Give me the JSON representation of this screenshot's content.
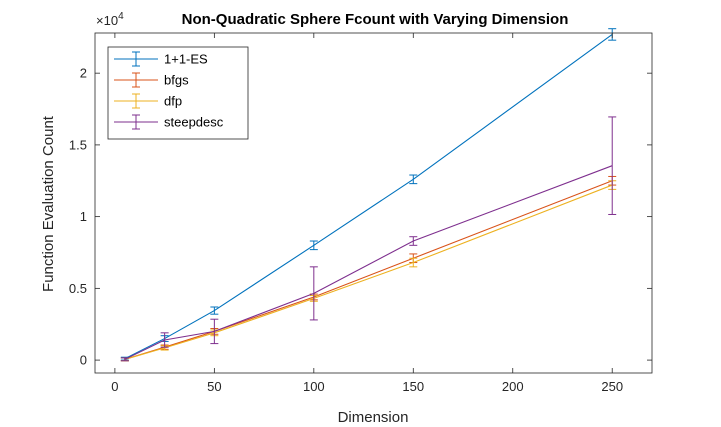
{
  "chart_data": {
    "type": "line",
    "title": "Non-Quadratic Sphere Fcount with Varying Dimension",
    "xlabel": "Dimension",
    "ylabel": "Function Evaluation Count",
    "xlim": [
      -10,
      270
    ],
    "ylim": [
      -0.09,
      2.28
    ],
    "y_exponent_label": "×10",
    "y_exponent_power": "4",
    "x_ticks": [
      0,
      50,
      100,
      150,
      200,
      250
    ],
    "x_tick_labels": [
      "0",
      "50",
      "100",
      "150",
      "200",
      "250"
    ],
    "y_ticks": [
      0,
      0.5,
      1,
      1.5,
      2
    ],
    "y_tick_labels": [
      "0",
      "0.5",
      "1",
      "1.5",
      "2"
    ],
    "grid": false,
    "legend_position": "top-left",
    "x": [
      5,
      25,
      50,
      100,
      150,
      250
    ],
    "series": [
      {
        "name": "1+1-ES",
        "color": "#0072bd",
        "values": [
          0.01,
          0.15,
          0.345,
          0.8,
          1.26,
          2.27
        ],
        "errors": [
          0.01,
          0.02,
          0.025,
          0.03,
          0.03,
          0.04
        ]
      },
      {
        "name": "bfgs",
        "color": "#d95319",
        "values": [
          0.005,
          0.09,
          0.2,
          0.44,
          0.71,
          1.25
        ],
        "errors": [
          0.01,
          0.015,
          0.02,
          0.02,
          0.03,
          0.03
        ]
      },
      {
        "name": "dfp",
        "color": "#edb120",
        "values": [
          0.005,
          0.085,
          0.19,
          0.43,
          0.68,
          1.22
        ],
        "errors": [
          0.01,
          0.015,
          0.02,
          0.02,
          0.03,
          0.03
        ]
      },
      {
        "name": "steepdesc",
        "color": "#7e2f8e",
        "values": [
          0.005,
          0.14,
          0.2,
          0.465,
          0.83,
          1.355
        ],
        "errors": [
          0.01,
          0.05,
          0.085,
          0.185,
          0.03,
          0.34
        ]
      }
    ]
  }
}
